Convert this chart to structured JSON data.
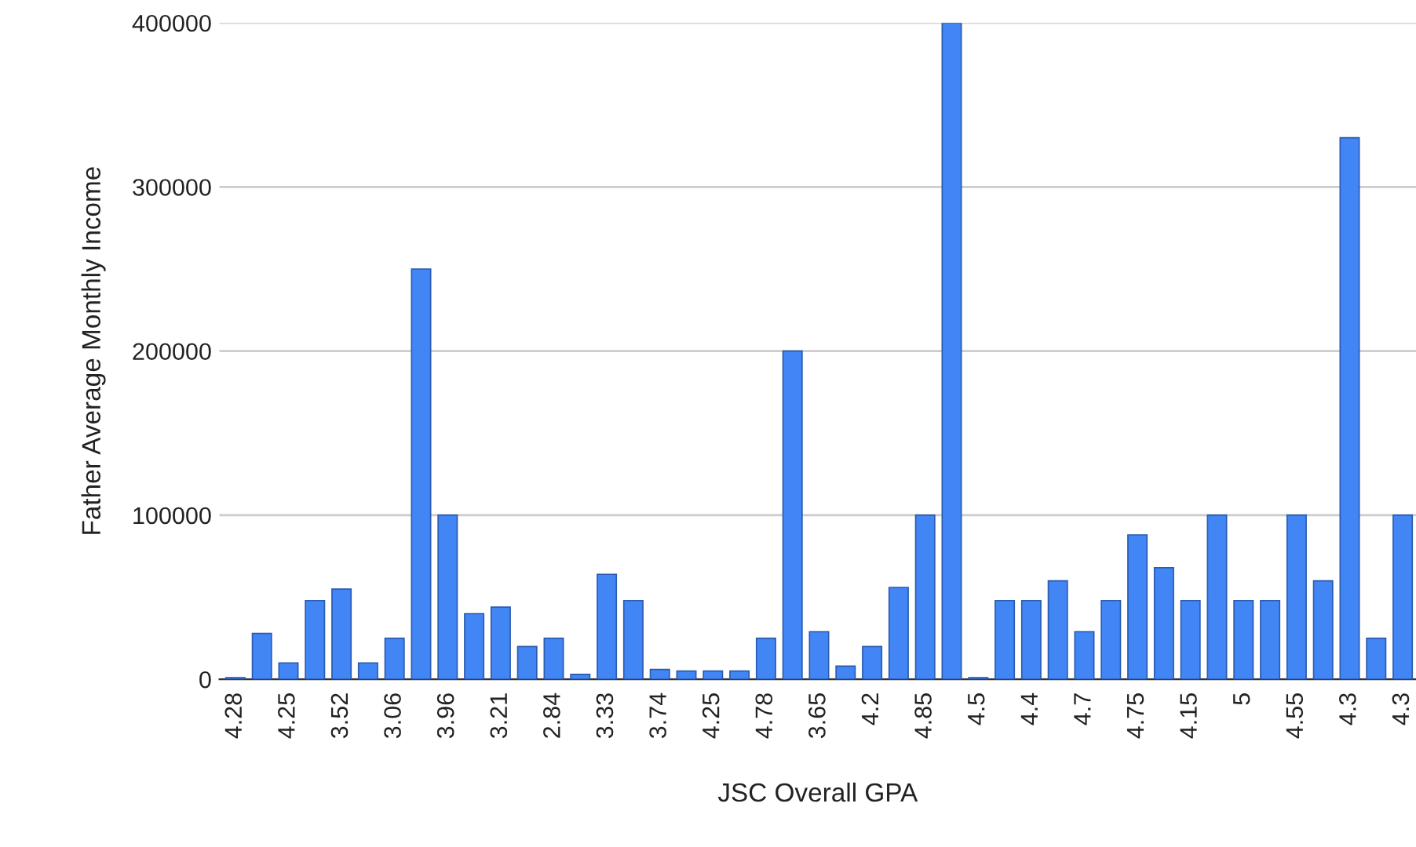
{
  "chart_data": {
    "type": "bar",
    "xlabel": "JSC Overall GPA",
    "ylabel": "Father Average Monthly Income",
    "categories": [
      "4.28",
      null,
      "4.25",
      null,
      "3.52",
      null,
      "3.06",
      null,
      "3.96",
      null,
      "3.21",
      null,
      "2.84",
      null,
      "3.33",
      null,
      "3.74",
      null,
      "4.25",
      null,
      "4.78",
      null,
      "3.65",
      null,
      "4.2",
      null,
      "4.85",
      null,
      "4.5",
      null,
      "4.4",
      null,
      "4.7",
      null,
      "4.75",
      null,
      "4.15",
      null,
      "5",
      null,
      "4.55",
      null,
      "4.3",
      null,
      "4.3"
    ],
    "values": [
      1000,
      28000,
      10000,
      48000,
      55000,
      10000,
      25000,
      250000,
      100000,
      40000,
      44000,
      20000,
      25000,
      3000,
      64000,
      48000,
      6000,
      5000,
      5000,
      5000,
      25000,
      200000,
      29000,
      8000,
      20000,
      56000,
      100000,
      400000,
      1000,
      48000,
      48000,
      60000,
      29000,
      48000,
      88000,
      68000,
      48000,
      100000,
      48000,
      48000,
      100000,
      60000,
      330000,
      25000,
      100000
    ],
    "color": "#4285f4",
    "ylim": [
      0,
      400000
    ],
    "yticks": [
      0,
      100000,
      200000,
      300000,
      400000
    ],
    "grid": "y"
  }
}
